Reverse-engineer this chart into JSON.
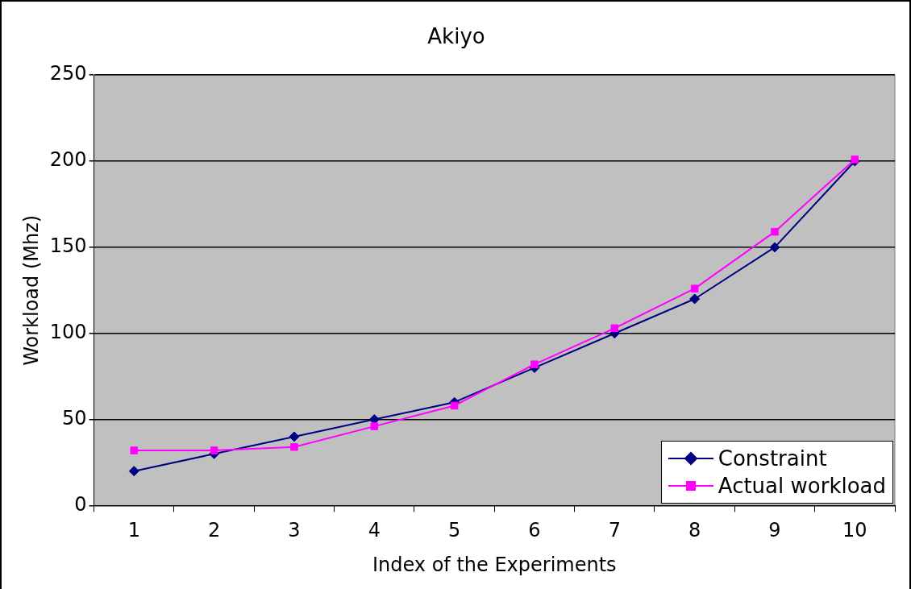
{
  "chart_data": {
    "type": "line",
    "title": "Akiyo",
    "xlabel": "Index of the Experiments",
    "ylabel": "Workload (Mhz)",
    "categories": [
      "1",
      "2",
      "3",
      "4",
      "5",
      "6",
      "7",
      "8",
      "9",
      "10"
    ],
    "series": [
      {
        "name": "Constraint",
        "color": "#000080",
        "marker": "diamond",
        "values": [
          20,
          30,
          40,
          50,
          60,
          80,
          100,
          120,
          150,
          200
        ]
      },
      {
        "name": "Actual workload",
        "color": "#ff00ff",
        "marker": "square",
        "values": [
          32,
          32,
          34,
          46,
          58,
          82,
          103,
          126,
          159,
          201
        ]
      }
    ],
    "ylim": [
      0,
      250
    ],
    "yticks": [
      0,
      50,
      100,
      150,
      200,
      250
    ],
    "grid": "y",
    "legend": "bottom right",
    "line_style": "solid"
  }
}
